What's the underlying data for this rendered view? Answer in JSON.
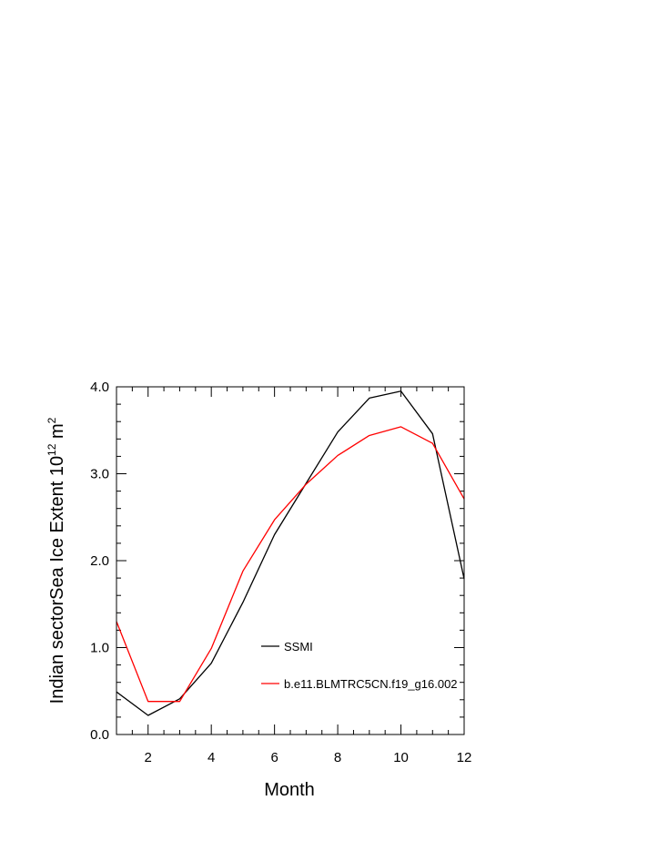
{
  "chart_data": {
    "type": "line",
    "title": "",
    "xlabel": "Month",
    "ylabel_main": "Indian sectorSea Ice Extent 10",
    "ylabel_sup1": "12",
    "ylabel_mid": " m",
    "ylabel_sup2": "2",
    "xlim": [
      1,
      12
    ],
    "ylim": [
      0,
      4
    ],
    "x_ticks": [
      2,
      4,
      6,
      8,
      10,
      12
    ],
    "y_ticks": [
      0,
      1,
      2,
      3,
      4
    ],
    "y_tick_labels": [
      "0.0",
      "1.0",
      "2.0",
      "3.0",
      "4.0"
    ],
    "legend_placement": "lower-right inside",
    "x": [
      1,
      2,
      3,
      4,
      5,
      6,
      7,
      8,
      9,
      10,
      11,
      12
    ],
    "series": [
      {
        "name": "SSMI",
        "color": "#000000",
        "values": [
          0.49,
          0.22,
          0.41,
          0.82,
          1.52,
          2.3,
          2.89,
          3.48,
          3.87,
          3.95,
          3.46,
          1.79
        ]
      },
      {
        "name": "b.e11.BLMTRC5CN.f19_g16.002",
        "color": "#ff0000",
        "values": [
          1.3,
          0.38,
          0.38,
          0.99,
          1.88,
          2.47,
          2.88,
          3.21,
          3.44,
          3.54,
          3.35,
          2.71
        ]
      }
    ]
  }
}
